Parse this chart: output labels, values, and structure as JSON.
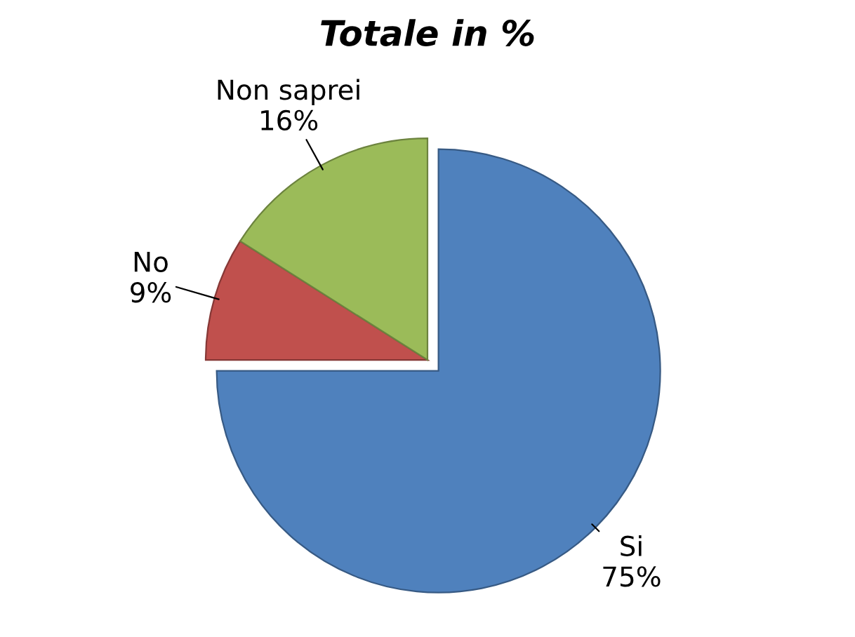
{
  "chart_data": {
    "type": "pie",
    "title": "Totale in %",
    "categories": [
      "Si",
      "No",
      "Non saprei"
    ],
    "values": [
      75,
      9,
      16
    ],
    "value_labels": [
      "75%",
      "9%",
      "16%"
    ],
    "colors": [
      "#4f81bd",
      "#c0504d",
      "#9bbb59"
    ],
    "legend": false
  }
}
